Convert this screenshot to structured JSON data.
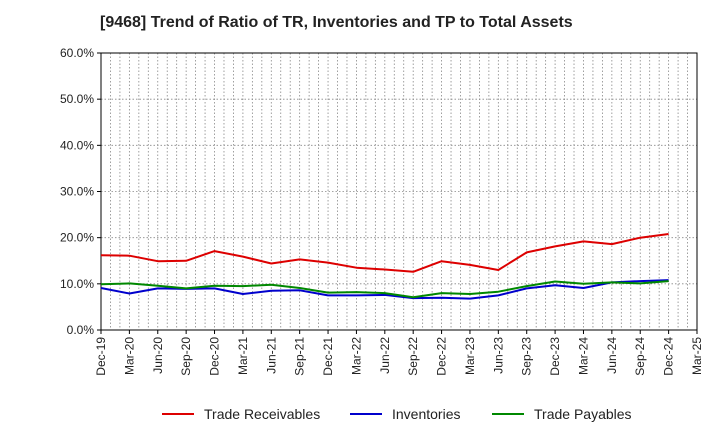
{
  "chart_data": {
    "type": "line",
    "title": "[9468]  Trend of Ratio of TR, Inventories and TP to Total Assets",
    "xlabel": "",
    "ylabel": "",
    "ylim": [
      0,
      60
    ],
    "y_ticks": [
      "0.0%",
      "10.0%",
      "20.0%",
      "30.0%",
      "40.0%",
      "50.0%",
      "60.0%"
    ],
    "y_tick_values": [
      0,
      10,
      20,
      30,
      40,
      50,
      60
    ],
    "x_ticks": [
      "Dec-19",
      "Mar-20",
      "Jun-20",
      "Sep-20",
      "Dec-20",
      "Mar-21",
      "Jun-21",
      "Sep-21",
      "Dec-21",
      "Mar-22",
      "Jun-22",
      "Sep-22",
      "Dec-22",
      "Mar-23",
      "Jun-23",
      "Sep-23",
      "Dec-23",
      "Mar-24",
      "Jun-24",
      "Sep-24",
      "Dec-24",
      "Mar-25"
    ],
    "x": [
      "Dec-19",
      "Mar-20",
      "Jun-20",
      "Sep-20",
      "Dec-20",
      "Mar-21",
      "Jun-21",
      "Sep-21",
      "Dec-21",
      "Mar-22",
      "Jun-22",
      "Sep-22",
      "Dec-22",
      "Mar-23",
      "Jun-23",
      "Sep-23",
      "Dec-23",
      "Mar-24",
      "Jun-24",
      "Sep-24",
      "Dec-24"
    ],
    "grid": true,
    "legend_position": "bottom",
    "series": [
      {
        "name": "Trade Receivables",
        "color": "#dd0000",
        "values": [
          16.2,
          16.1,
          14.9,
          15.0,
          17.1,
          15.9,
          14.4,
          15.3,
          14.6,
          13.5,
          13.1,
          12.6,
          14.9,
          14.1,
          13.0,
          16.8,
          18.1,
          19.2,
          18.6,
          20.0,
          20.8
        ]
      },
      {
        "name": "Inventories",
        "color": "#0000cc",
        "values": [
          9.1,
          7.9,
          9.0,
          8.9,
          9.0,
          7.8,
          8.5,
          8.6,
          7.5,
          7.5,
          7.6,
          6.9,
          7.0,
          6.8,
          7.5,
          9.0,
          9.7,
          9.1,
          10.3,
          10.6,
          10.8
        ]
      },
      {
        "name": "Trade Payables",
        "color": "#008800",
        "values": [
          9.9,
          10.1,
          9.6,
          9.0,
          9.6,
          9.5,
          9.8,
          9.1,
          8.1,
          8.2,
          8.0,
          7.1,
          8.0,
          7.8,
          8.3,
          9.5,
          10.5,
          10.0,
          10.3,
          10.1,
          10.6
        ]
      }
    ]
  }
}
